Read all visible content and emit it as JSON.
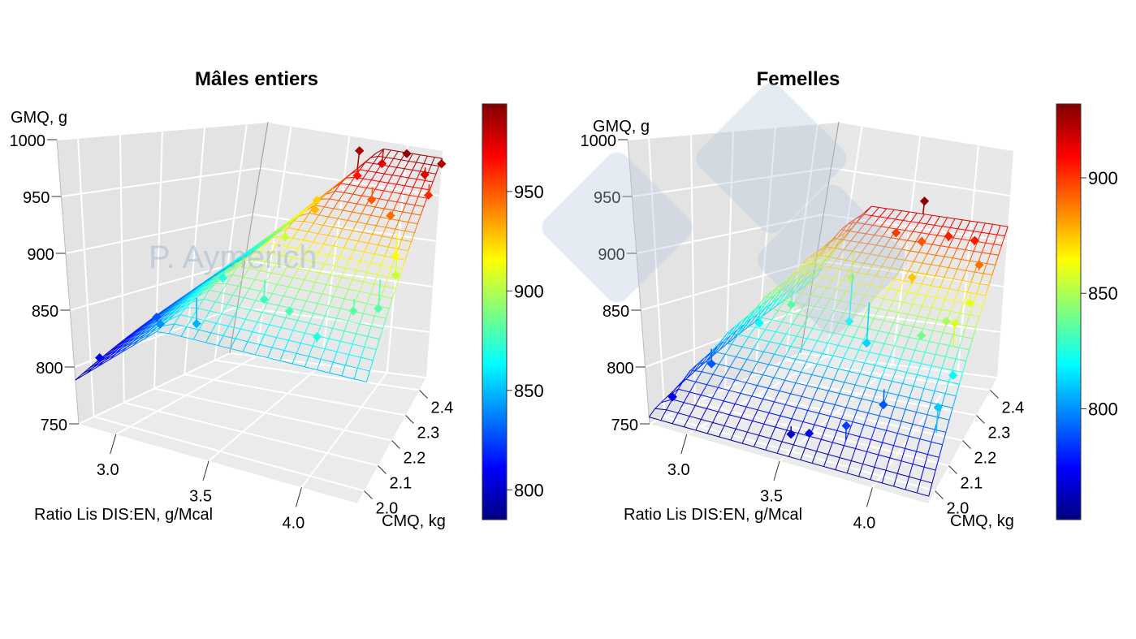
{
  "watermark": {
    "text": "P. Aymerich",
    "logo": "3tres3-logo"
  },
  "chart_data": [
    {
      "type": "surface3d",
      "title": "Mâles entiers",
      "zlabel": "GMQ, g",
      "xlabel": "Ratio Lis DIS:EN, g/Mcal",
      "ylabel": "CMQ, kg",
      "xlim": [
        2.8,
        4.3
      ],
      "ylim": [
        1.95,
        2.45
      ],
      "zlim": [
        750,
        1000
      ],
      "xticks": [
        "3.0",
        "3.5",
        "4.0"
      ],
      "yticks": [
        "2.0",
        "2.1",
        "2.2",
        "2.3",
        "2.4"
      ],
      "zticks": [
        "750",
        "800",
        "850",
        "900",
        "950",
        "1000"
      ],
      "colorbar": {
        "range": [
          785,
          994
        ],
        "ticks": [
          "800",
          "850",
          "900",
          "950"
        ],
        "colormap": "jet"
      },
      "surface": {
        "model": "linear-plateau",
        "base_at_xmin": [
          795,
          130
        ],
        "slope_x": 140,
        "plateau": [
          865,
          280
        ]
      },
      "points": [
        [
          2.85,
          2.0,
          805
        ],
        [
          2.9,
          2.15,
          828
        ],
        [
          3.1,
          2.05,
          840
        ],
        [
          3.3,
          2.05,
          848
        ],
        [
          3.2,
          2.2,
          870
        ],
        [
          3.4,
          2.3,
          905
        ],
        [
          3.5,
          2.35,
          930
        ],
        [
          3.3,
          2.45,
          925
        ],
        [
          3.6,
          2.1,
          875
        ],
        [
          3.8,
          2.05,
          878
        ],
        [
          4.0,
          2.0,
          870
        ],
        [
          4.1,
          2.1,
          882
        ],
        [
          4.2,
          2.15,
          880
        ],
        [
          3.7,
          2.4,
          965
        ],
        [
          3.9,
          2.35,
          950
        ],
        [
          4.1,
          2.3,
          945
        ],
        [
          4.2,
          2.25,
          915
        ],
        [
          4.25,
          2.2,
          905
        ],
        [
          3.6,
          2.45,
          985
        ],
        [
          4.0,
          2.45,
          990
        ],
        [
          4.2,
          2.42,
          975
        ],
        [
          4.28,
          2.38,
          960
        ],
        [
          3.8,
          2.45,
          975
        ],
        [
          4.3,
          2.45,
          985
        ]
      ]
    },
    {
      "type": "surface3d",
      "title": "Femelles",
      "zlabel": "GMQ, g",
      "xlabel": "Ratio Lis DIS:EN, g/Mcal",
      "ylabel": "CMQ, kg",
      "xlim": [
        2.8,
        4.3
      ],
      "ylim": [
        1.95,
        2.45
      ],
      "zlim": [
        750,
        1000
      ],
      "xticks": [
        "3.0",
        "3.5",
        "4.0"
      ],
      "yticks": [
        "2.0",
        "2.1",
        "2.2",
        "2.3",
        "2.4"
      ],
      "zticks": [
        "750",
        "800",
        "850",
        "900",
        "950",
        "1000"
      ],
      "colorbar": {
        "range": [
          752,
          932
        ],
        "ticks": [
          "800",
          "850",
          "900"
        ],
        "colormap": "jet"
      },
      "surface": {
        "model": "linear-plateau",
        "base_at_xmin": [
          765,
          140
        ],
        "slope_x": 250,
        "plateau": [
          772,
          320
        ]
      },
      "points": [
        [
          2.85,
          2.0,
          770
        ],
        [
          2.9,
          2.1,
          790
        ],
        [
          3.0,
          2.2,
          820
        ],
        [
          3.1,
          2.25,
          835
        ],
        [
          3.3,
          2.35,
          855
        ],
        [
          3.5,
          2.0,
          765
        ],
        [
          3.6,
          2.0,
          770
        ],
        [
          3.4,
          2.3,
          820
        ],
        [
          3.6,
          2.25,
          812
        ],
        [
          3.5,
          2.4,
          900
        ],
        [
          3.6,
          2.45,
          930
        ],
        [
          3.7,
          2.4,
          895
        ],
        [
          3.9,
          2.4,
          905
        ],
        [
          4.1,
          2.4,
          905
        ],
        [
          4.2,
          2.35,
          890
        ],
        [
          3.9,
          2.1,
          790
        ],
        [
          3.8,
          2.0,
          785
        ],
        [
          4.0,
          2.2,
          840
        ],
        [
          4.1,
          2.25,
          848
        ],
        [
          4.2,
          2.2,
          858
        ],
        [
          4.25,
          2.15,
          820
        ],
        [
          4.25,
          2.05,
          810
        ],
        [
          3.8,
          2.3,
          875
        ],
        [
          4.2,
          2.3,
          860
        ]
      ]
    }
  ]
}
